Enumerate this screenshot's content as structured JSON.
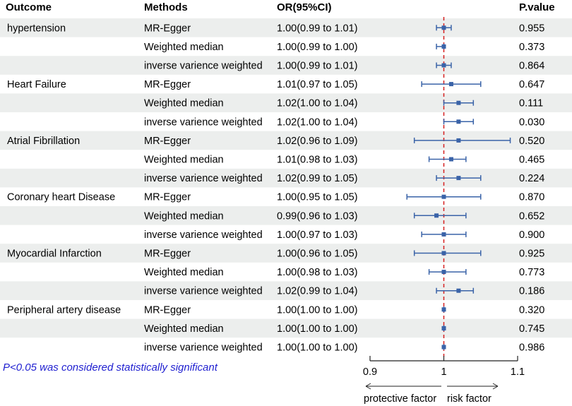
{
  "headers": {
    "outcome": "Outcome",
    "methods": "Methods",
    "or": "OR(95%CI)",
    "p": "P.value"
  },
  "note": "P<0.05 was considered statistically significant",
  "chart_data": {
    "type": "forest",
    "reference_line": 1,
    "xlim": [
      0.9,
      1.1
    ],
    "xticks": [
      "0.9",
      "1",
      "1.1"
    ],
    "protective_label": "protective factor",
    "risk_label": "risk factor",
    "colors": {
      "marker": "#3a63a8",
      "reference": "#d62020",
      "band": "#eceeed"
    },
    "groups": [
      {
        "outcome": "hypertension",
        "rows": [
          {
            "method": "MR-Egger",
            "or_text": "1.00(0.99 to 1.01)",
            "p": "0.955",
            "or": 1.0,
            "lo": 0.99,
            "hi": 1.01
          },
          {
            "method": "Weighted median",
            "or_text": "1.00(0.99 to 1.00)",
            "p": "0.373",
            "or": 1.0,
            "lo": 0.99,
            "hi": 1.0
          },
          {
            "method": "inverse varience weighted",
            "or_text": "1.00(0.99 to 1.01)",
            "p": "0.864",
            "or": 1.0,
            "lo": 0.99,
            "hi": 1.01
          }
        ]
      },
      {
        "outcome": "Heart Failure",
        "rows": [
          {
            "method": "MR-Egger",
            "or_text": "1.01(0.97 to 1.05)",
            "p": "0.647",
            "or": 1.01,
            "lo": 0.97,
            "hi": 1.05
          },
          {
            "method": "Weighted median",
            "or_text": "1.02(1.00 to 1.04)",
            "p": "0.111",
            "or": 1.02,
            "lo": 1.0,
            "hi": 1.04
          },
          {
            "method": "inverse varience weighted",
            "or_text": "1.02(1.00 to 1.04)",
            "p": "0.030",
            "or": 1.02,
            "lo": 1.0,
            "hi": 1.04
          }
        ]
      },
      {
        "outcome": "Atrial Fibrillation",
        "rows": [
          {
            "method": "MR-Egger",
            "or_text": "1.02(0.96 to 1.09)",
            "p": "0.520",
            "or": 1.02,
            "lo": 0.96,
            "hi": 1.09
          },
          {
            "method": "Weighted median",
            "or_text": "1.01(0.98 to 1.03)",
            "p": "0.465",
            "or": 1.01,
            "lo": 0.98,
            "hi": 1.03
          },
          {
            "method": "inverse varience weighted",
            "or_text": "1.02(0.99 to 1.05)",
            "p": "0.224",
            "or": 1.02,
            "lo": 0.99,
            "hi": 1.05
          }
        ]
      },
      {
        "outcome": "Coronary heart Disease",
        "rows": [
          {
            "method": "MR-Egger",
            "or_text": "1.00(0.95 to 1.05)",
            "p": "0.870",
            "or": 1.0,
            "lo": 0.95,
            "hi": 1.05
          },
          {
            "method": "Weighted median",
            "or_text": "0.99(0.96 to 1.03)",
            "p": "0.652",
            "or": 0.99,
            "lo": 0.96,
            "hi": 1.03
          },
          {
            "method": "inverse varience weighted",
            "or_text": "1.00(0.97 to 1.03)",
            "p": "0.900",
            "or": 1.0,
            "lo": 0.97,
            "hi": 1.03
          }
        ]
      },
      {
        "outcome": "Myocardial Infarction",
        "rows": [
          {
            "method": "MR-Egger",
            "or_text": "1.00(0.96 to 1.05)",
            "p": "0.925",
            "or": 1.0,
            "lo": 0.96,
            "hi": 1.05
          },
          {
            "method": "Weighted median",
            "or_text": "1.00(0.98 to 1.03)",
            "p": "0.773",
            "or": 1.0,
            "lo": 0.98,
            "hi": 1.03
          },
          {
            "method": "inverse varience weighted",
            "or_text": "1.02(0.99 to 1.04)",
            "p": "0.186",
            "or": 1.02,
            "lo": 0.99,
            "hi": 1.04
          }
        ]
      },
      {
        "outcome": "Peripheral artery disease",
        "rows": [
          {
            "method": "MR-Egger",
            "or_text": "1.00(1.00 to 1.00)",
            "p": "0.320",
            "or": 1.0,
            "lo": 1.0,
            "hi": 1.0
          },
          {
            "method": "Weighted median",
            "or_text": "1.00(1.00 to 1.00)",
            "p": "0.745",
            "or": 1.0,
            "lo": 1.0,
            "hi": 1.0
          },
          {
            "method": "inverse varience weighted",
            "or_text": "1.00(1.00 to 1.00)",
            "p": "0.986",
            "or": 1.0,
            "lo": 1.0,
            "hi": 1.0
          }
        ]
      }
    ]
  }
}
